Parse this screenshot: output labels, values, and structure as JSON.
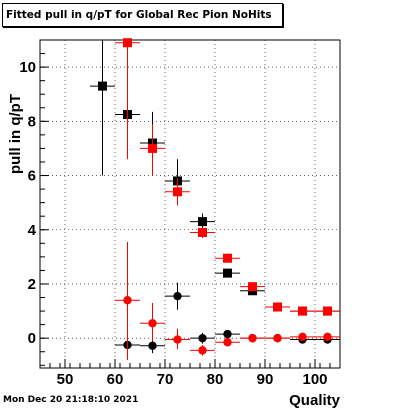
{
  "title": "Fitted pull in q/pT for Global Rec Pion NoHits",
  "footer": "Mon Dec 20 21:18:10 2021",
  "chart_data": {
    "type": "scatter",
    "xlabel": "Quality",
    "ylabel": "pull in q/pT",
    "xlim": [
      45,
      105
    ],
    "ylim": [
      -1.1,
      11
    ],
    "xticks": [
      50,
      60,
      70,
      80,
      90,
      100
    ],
    "yticks": [
      0,
      2,
      4,
      6,
      8,
      10
    ],
    "grid": true,
    "series": [
      {
        "marker": "square",
        "color": "#000000",
        "points": [
          {
            "x": 57.5,
            "y": 9.3,
            "xerr": 2.5,
            "ylo": 6.0,
            "yhi": 11.0
          },
          {
            "x": 62.5,
            "y": 8.25,
            "xerr": 2.5,
            "ylo": 7.6,
            "yhi": 8.9
          },
          {
            "x": 67.5,
            "y": 7.2,
            "xerr": 2.5,
            "ylo": 6.2,
            "yhi": 8.35
          },
          {
            "x": 72.5,
            "y": 5.8,
            "xerr": 2.5,
            "ylo": 5.0,
            "yhi": 6.6
          },
          {
            "x": 77.5,
            "y": 4.3,
            "xerr": 2.5,
            "ylo": 4.0,
            "yhi": 4.6
          },
          {
            "x": 82.5,
            "y": 2.4,
            "xerr": 2.5,
            "ylo": 2.25,
            "yhi": 2.55
          },
          {
            "x": 87.5,
            "y": 1.75,
            "xerr": 2.5,
            "ylo": 1.65,
            "yhi": 1.85
          },
          {
            "x": 92.5,
            "y": 1.15,
            "xerr": 2.5,
            "ylo": 1.1,
            "yhi": 1.2
          },
          {
            "x": 97.5,
            "y": 1.0,
            "xerr": 2.5,
            "ylo": 0.97,
            "yhi": 1.03
          },
          {
            "x": 102.5,
            "y": 1.0,
            "xerr": 2.5,
            "ylo": 0.98,
            "yhi": 1.02
          }
        ]
      },
      {
        "marker": "square",
        "color": "#ff0000",
        "points": [
          {
            "x": 62.5,
            "y": 10.9,
            "xerr": 2.5,
            "ylo": 6.6,
            "yhi": 11.0
          },
          {
            "x": 67.5,
            "y": 7.0,
            "xerr": 2.5,
            "ylo": 6.0,
            "yhi": 7.9
          },
          {
            "x": 72.5,
            "y": 5.4,
            "xerr": 2.5,
            "ylo": 4.9,
            "yhi": 5.9
          },
          {
            "x": 77.5,
            "y": 3.9,
            "xerr": 2.5,
            "ylo": 3.7,
            "yhi": 4.1
          },
          {
            "x": 82.5,
            "y": 2.95,
            "xerr": 2.5,
            "ylo": 2.85,
            "yhi": 3.05
          },
          {
            "x": 87.5,
            "y": 1.9,
            "xerr": 2.5,
            "ylo": 1.82,
            "yhi": 1.98
          },
          {
            "x": 92.5,
            "y": 1.15,
            "xerr": 2.5,
            "ylo": 1.1,
            "yhi": 1.2
          },
          {
            "x": 97.5,
            "y": 1.0,
            "xerr": 2.5,
            "ylo": 0.97,
            "yhi": 1.03
          },
          {
            "x": 102.5,
            "y": 1.0,
            "xerr": 2.5,
            "ylo": 0.98,
            "yhi": 1.02
          }
        ]
      },
      {
        "marker": "circle",
        "color": "#000000",
        "points": [
          {
            "x": 62.5,
            "y": -0.25,
            "xerr": 2.5,
            "ylo": -0.6,
            "yhi": 0.1
          },
          {
            "x": 67.5,
            "y": -0.28,
            "xerr": 2.5,
            "ylo": -0.55,
            "yhi": 0.0
          },
          {
            "x": 72.5,
            "y": 1.55,
            "xerr": 2.5,
            "ylo": 1.05,
            "yhi": 2.05
          },
          {
            "x": 77.5,
            "y": 0.0,
            "xerr": 2.5,
            "ylo": -0.2,
            "yhi": 0.2
          },
          {
            "x": 82.5,
            "y": 0.15,
            "xerr": 2.5,
            "ylo": 0.05,
            "yhi": 0.25
          },
          {
            "x": 87.5,
            "y": 0.0,
            "xerr": 2.5,
            "ylo": -0.05,
            "yhi": 0.05
          },
          {
            "x": 92.5,
            "y": 0.0,
            "xerr": 2.5,
            "ylo": -0.03,
            "yhi": 0.03
          },
          {
            "x": 97.5,
            "y": -0.05,
            "xerr": 2.5,
            "ylo": -0.07,
            "yhi": -0.03
          },
          {
            "x": 102.5,
            "y": -0.05,
            "xerr": 2.5,
            "ylo": -0.07,
            "yhi": -0.03
          }
        ]
      },
      {
        "marker": "circle",
        "color": "#ff0000",
        "points": [
          {
            "x": 62.5,
            "y": 1.4,
            "xerr": 2.5,
            "ylo": -0.8,
            "yhi": 3.55
          },
          {
            "x": 67.5,
            "y": 0.55,
            "xerr": 2.5,
            "ylo": -0.1,
            "yhi": 1.3
          },
          {
            "x": 72.5,
            "y": -0.05,
            "xerr": 2.5,
            "ylo": -0.4,
            "yhi": 0.35
          },
          {
            "x": 77.5,
            "y": -0.45,
            "xerr": 2.5,
            "ylo": -0.65,
            "yhi": -0.25
          },
          {
            "x": 82.5,
            "y": -0.15,
            "xerr": 2.5,
            "ylo": -0.25,
            "yhi": -0.05
          },
          {
            "x": 87.5,
            "y": 0.0,
            "xerr": 2.5,
            "ylo": -0.05,
            "yhi": 0.05
          },
          {
            "x": 92.5,
            "y": 0.0,
            "xerr": 2.5,
            "ylo": -0.03,
            "yhi": 0.03
          },
          {
            "x": 97.5,
            "y": 0.05,
            "xerr": 2.5,
            "ylo": 0.02,
            "yhi": 0.08
          },
          {
            "x": 102.5,
            "y": 0.05,
            "xerr": 2.5,
            "ylo": 0.03,
            "yhi": 0.07
          }
        ]
      }
    ]
  }
}
